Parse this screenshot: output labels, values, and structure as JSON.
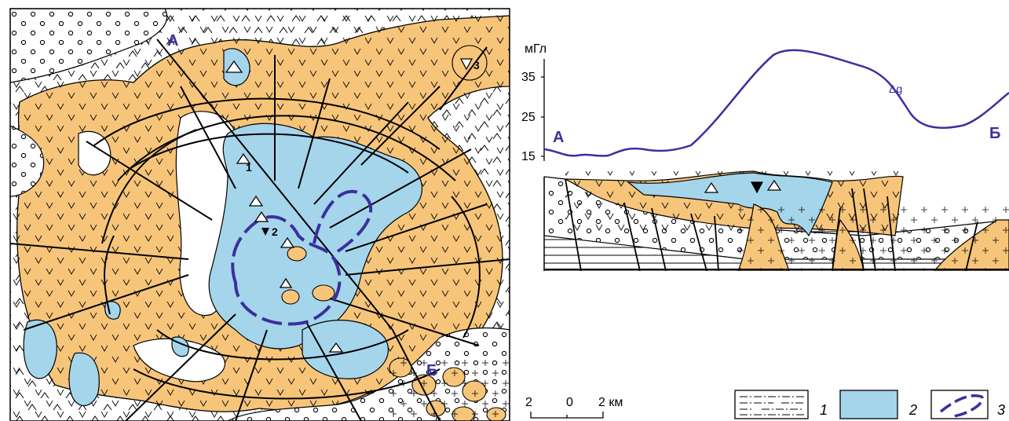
{
  "map": {
    "profile_start": "А",
    "profile_end": "Б",
    "wells": [
      {
        "id": "1",
        "label": "1"
      },
      {
        "id": "2",
        "label": "2"
      },
      {
        "id": "3",
        "label": "3"
      }
    ],
    "scale_bar": {
      "left": "2",
      "center": "0",
      "right": "2 км"
    }
  },
  "section": {
    "y_unit": "мГл",
    "y_ticks": [
      "35",
      "25",
      "15"
    ],
    "curve_label": "Δg",
    "start_label": "А",
    "end_label": "Б"
  },
  "legend": {
    "items": [
      {
        "number": "1"
      },
      {
        "number": "2"
      },
      {
        "number": "3"
      }
    ]
  },
  "colors": {
    "orange": "#f7c57a",
    "blue": "#a5d5eb",
    "accent": "#3b2f9e",
    "line": "#000000"
  }
}
